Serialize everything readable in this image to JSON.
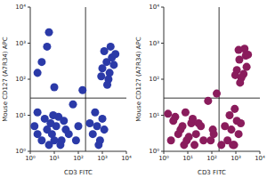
{
  "chart_data": [
    {
      "type": "scatter",
      "x_label": "CD3 FITC",
      "y_label": "Mouse CD127 (A7R34) APC",
      "log": true,
      "color": "#2b3aa8",
      "xlim": [
        1,
        10000
      ],
      "ylim": [
        1,
        10000
      ],
      "xticks": [
        {
          "value": 1,
          "label": "10⁰"
        },
        {
          "value": 10,
          "label": "10¹"
        },
        {
          "value": 100,
          "label": "10²"
        },
        {
          "value": 1000,
          "label": "10³"
        },
        {
          "value": 10000,
          "label": "10⁴"
        }
      ],
      "yticks": [
        {
          "value": 1,
          "label": "10⁰"
        },
        {
          "value": 10,
          "label": "10¹"
        },
        {
          "value": 100,
          "label": "10²"
        },
        {
          "value": 1000,
          "label": "10³"
        },
        {
          "value": 10000,
          "label": "10⁴"
        }
      ],
      "quadrant_lines": {
        "x": 200,
        "y": 30
      },
      "x": [
        2,
        3,
        5,
        8,
        12,
        20,
        4,
        6,
        15,
        30,
        2,
        10,
        7,
        25,
        1.5,
        40,
        18,
        9,
        3,
        5,
        2,
        10,
        6,
        1000,
        1500,
        2000,
        2500,
        1200,
        3000,
        1800,
        2200,
        900,
        3500,
        1600,
        400,
        600,
        800,
        1000,
        500,
        1200,
        700,
        300,
        60,
        100,
        150,
        80
      ],
      "values": [
        3,
        2,
        4,
        3,
        5,
        2,
        8,
        1.5,
        9,
        4,
        12,
        2,
        6,
        7,
        5,
        3,
        1.5,
        10,
        300,
        800,
        150,
        60,
        2000,
        200,
        300,
        150,
        400,
        600,
        250,
        100,
        800,
        120,
        500,
        70,
        3,
        5,
        2,
        8,
        12,
        4,
        1.5,
        6,
        20,
        5,
        50,
        2
      ]
    },
    {
      "type": "scatter",
      "x_label": "CD3 FITC",
      "y_label": "Mouse CD127 (A7R34) APC",
      "log": true,
      "color": "#8a1c5c",
      "xlim": [
        1,
        10000
      ],
      "ylim": [
        1,
        10000
      ],
      "xticks": [
        {
          "value": 1,
          "label": "10⁰"
        },
        {
          "value": 10,
          "label": "10¹"
        },
        {
          "value": 100,
          "label": "10²"
        },
        {
          "value": 1000,
          "label": "10³"
        },
        {
          "value": 10000,
          "label": "10⁴"
        }
      ],
      "yticks": [
        {
          "value": 1,
          "label": "10⁰"
        },
        {
          "value": 10,
          "label": "10¹"
        },
        {
          "value": 100,
          "label": "10²"
        },
        {
          "value": 1000,
          "label": "10³"
        },
        {
          "value": 10000,
          "label": "10⁴"
        }
      ],
      "quadrant_lines": {
        "x": 200,
        "y": 30
      },
      "x": [
        2,
        4,
        6,
        9,
        14,
        22,
        3,
        7,
        16,
        35,
        1.5,
        11,
        5,
        28,
        2.5,
        45,
        19,
        8,
        120,
        250,
        1100,
        1400,
        2100,
        2600,
        1300,
        2800,
        1700,
        2300,
        950,
        3200,
        1500,
        450,
        650,
        850,
        1100,
        550,
        1300,
        750,
        350,
        900,
        1600,
        70,
        110,
        160,
        90
      ],
      "values": [
        2,
        3,
        5,
        2,
        6,
        3,
        9,
        1.5,
        8,
        5,
        11,
        2.5,
        4,
        6,
        7,
        2,
        1.5,
        12,
        3,
        1.5,
        180,
        350,
        140,
        450,
        650,
        220,
        110,
        700,
        130,
        480,
        80,
        2,
        4,
        1.5,
        7,
        10,
        3,
        1.5,
        5,
        15,
        6,
        25,
        4,
        40,
        2
      ]
    }
  ]
}
